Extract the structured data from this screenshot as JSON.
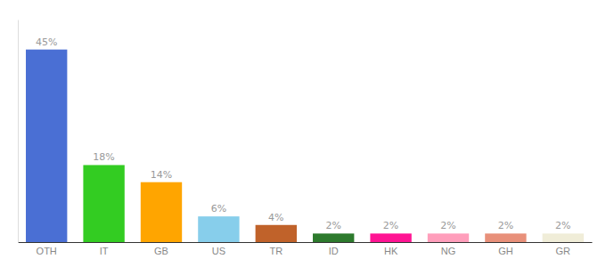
{
  "chart_data": {
    "type": "bar",
    "categories": [
      "OTH",
      "IT",
      "GB",
      "US",
      "TR",
      "ID",
      "HK",
      "NG",
      "GH",
      "GR"
    ],
    "values": [
      45,
      18,
      14,
      6,
      4,
      2,
      2,
      2,
      2,
      2
    ],
    "value_labels": [
      "45%",
      "18%",
      "14%",
      "6%",
      "4%",
      "2%",
      "2%",
      "2%",
      "2%",
      "2%"
    ],
    "colors": [
      "#4A6FD4",
      "#33CC22",
      "#FFA500",
      "#87CEEB",
      "#C0622A",
      "#2D7A2D",
      "#FF1493",
      "#FF9EBB",
      "#E8907A",
      "#F0EDD8"
    ],
    "ylim": [
      0,
      52
    ],
    "data_labels": true,
    "grid": false,
    "tick_labels": "x"
  }
}
